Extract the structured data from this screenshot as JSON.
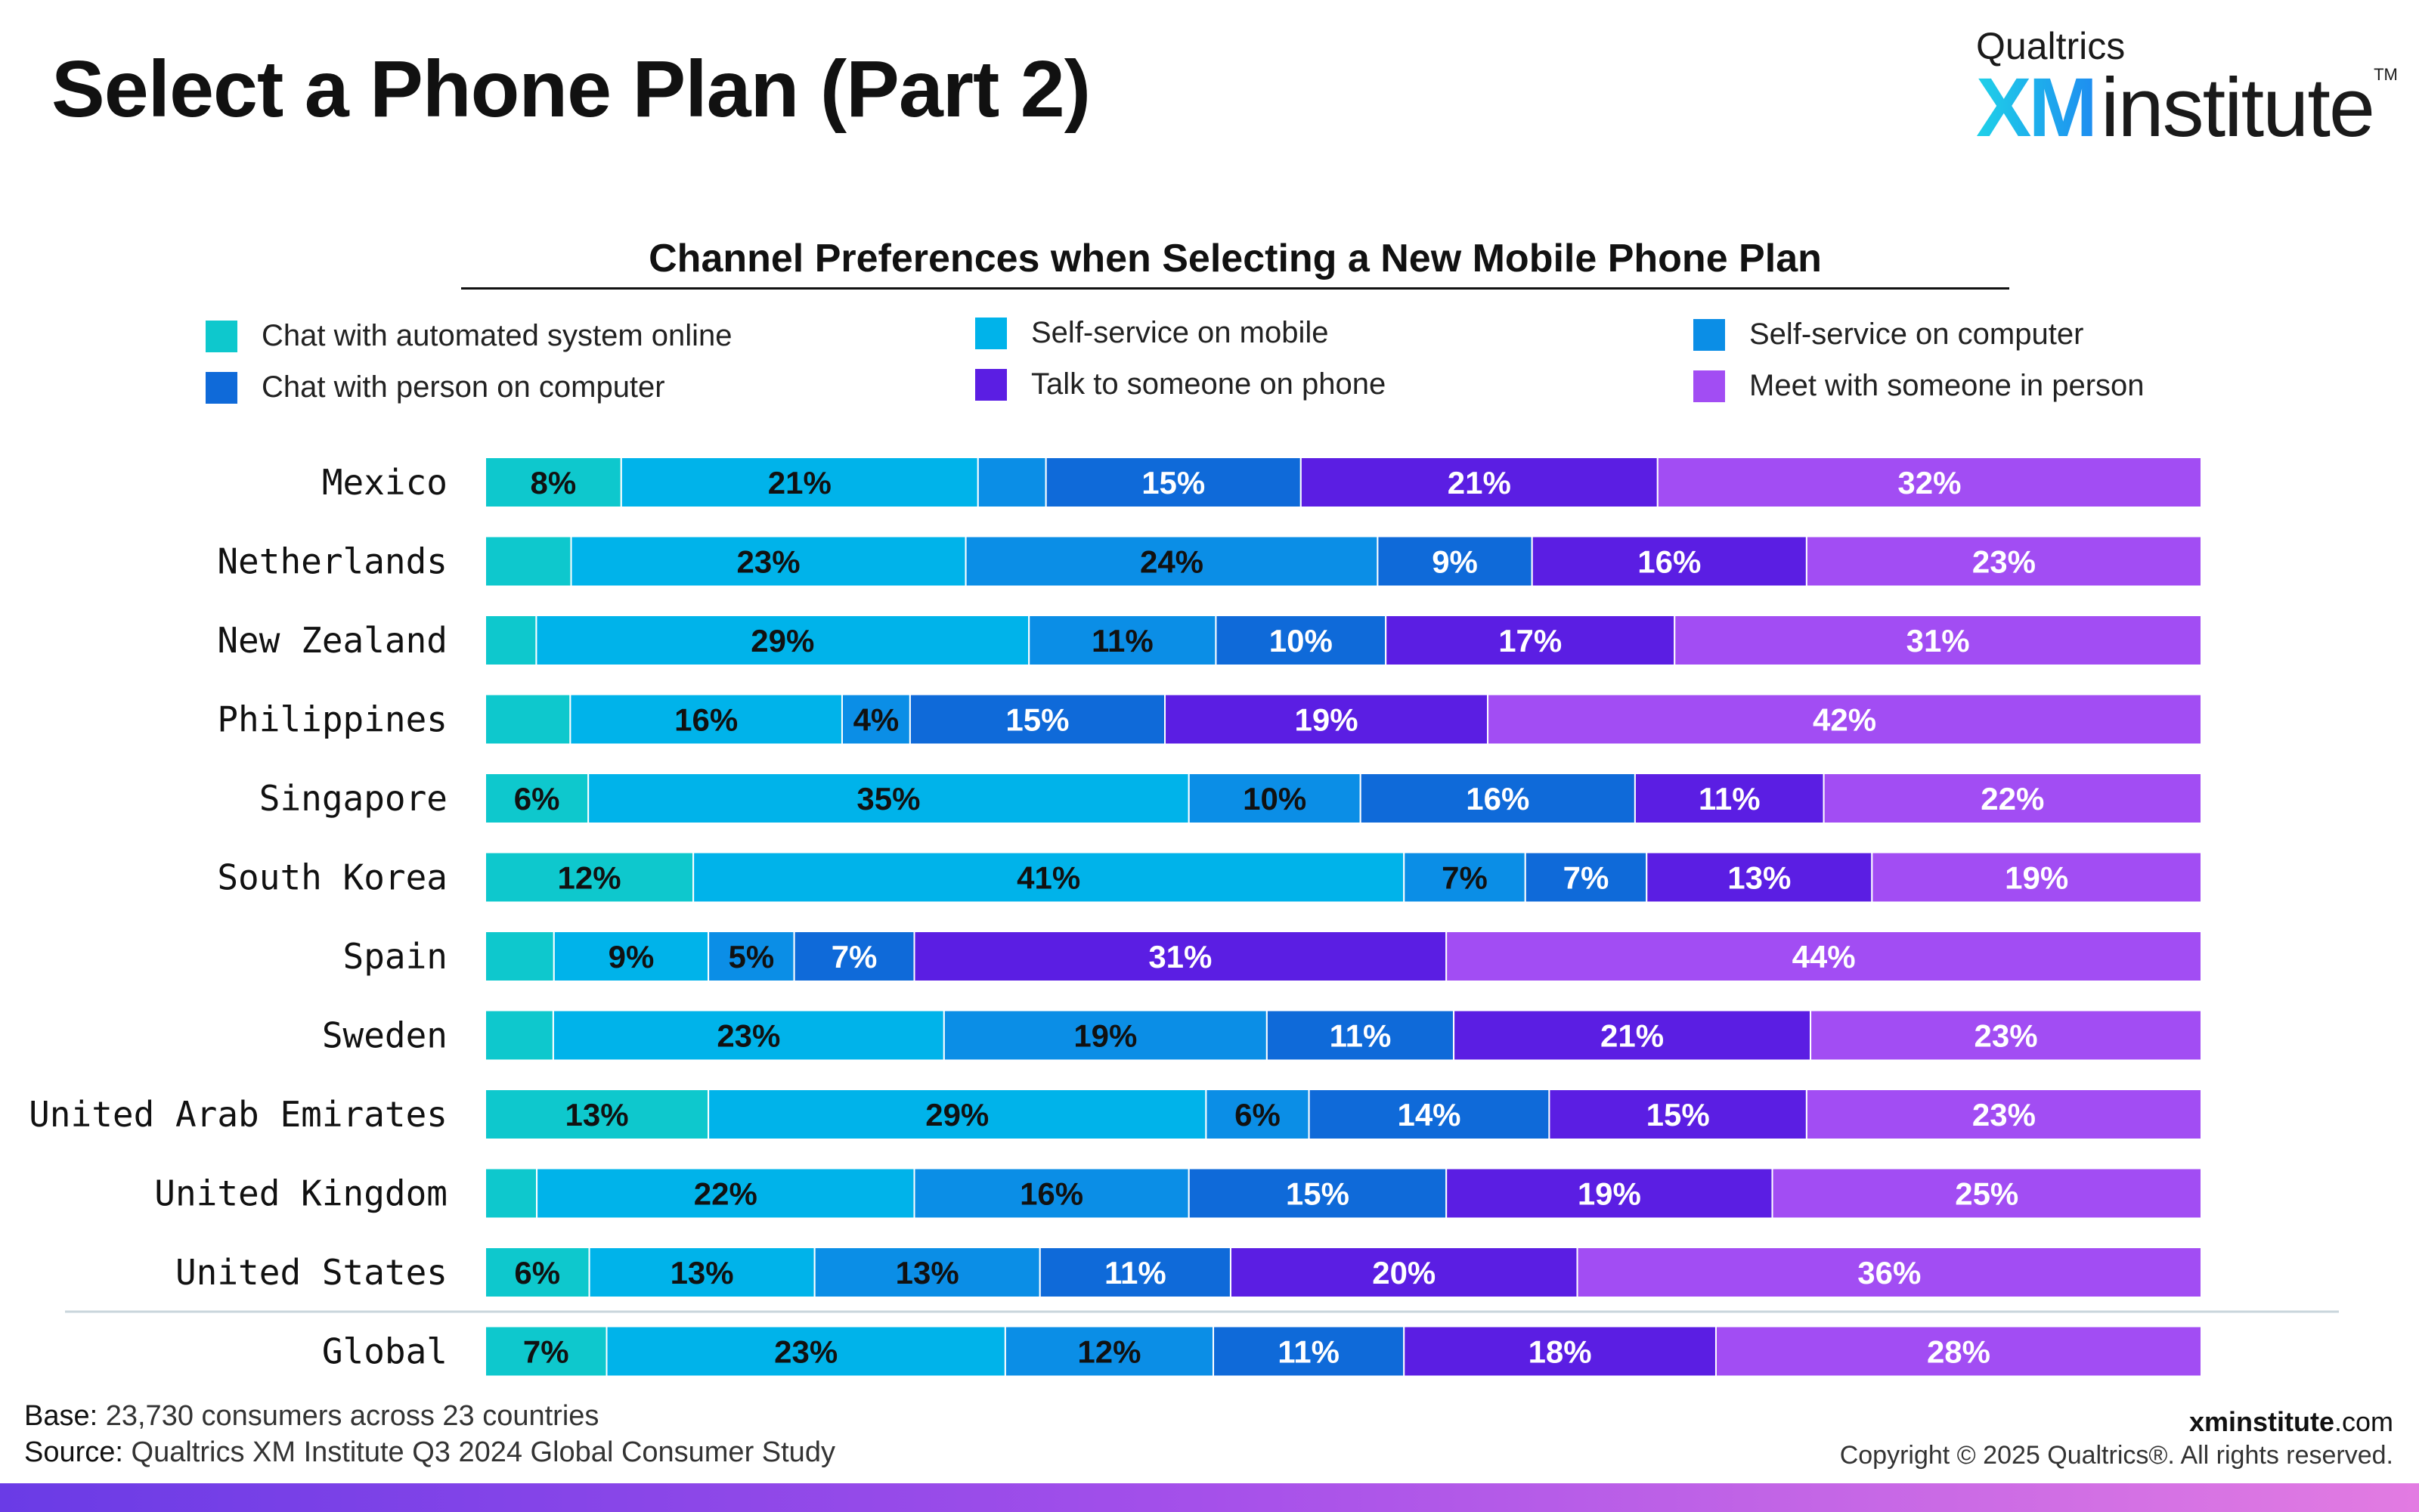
{
  "header": {
    "title": "Select a Phone Plan (Part 2)",
    "logo_small": "Qualtrics",
    "logo_xm": "XM",
    "logo_institute": "institute",
    "logo_tm": "TM"
  },
  "footer": {
    "base_label": "Base:",
    "base_text": " 23,730 consumers across 23 countries",
    "source_label": "Source:",
    "source_text": " Qualtrics XM Institute Q3 2024 Global Consumer Study",
    "site_bold": "xminstitute",
    "site_rest": ".com",
    "copyright": "Copyright © 2025 Qualtrics®. All rights reserved."
  },
  "chart_data": {
    "type": "bar",
    "orientation": "horizontal",
    "stacked": true,
    "normalized": true,
    "title": "Channel Preferences when Selecting a New Mobile Phone Plan",
    "legend_position": "top",
    "categories": [
      "Mexico",
      "Netherlands",
      "New Zealand",
      "Philippines",
      "Singapore",
      "South Korea",
      "Spain",
      "Sweden",
      "United Arab Emirates",
      "United Kingdom",
      "United States",
      "Global"
    ],
    "series": [
      {
        "name": "Chat with automated system online",
        "color": "#0ec8cd",
        "label_color": "#111111",
        "values": [
          8,
          5,
          3,
          5,
          6,
          12,
          4,
          4,
          13,
          3,
          6,
          7
        ]
      },
      {
        "name": "Self-service on mobile",
        "color": "#00b3ea",
        "label_color": "#111111",
        "values": [
          21,
          23,
          29,
          16,
          35,
          41,
          9,
          23,
          29,
          22,
          13,
          23
        ]
      },
      {
        "name": "Self-service on computer",
        "color": "#0b8ee6",
        "label_color": "#111111",
        "values": [
          4,
          24,
          11,
          4,
          10,
          7,
          5,
          19,
          6,
          16,
          13,
          12
        ]
      },
      {
        "name": "Chat with person on computer",
        "color": "#0f6ad9",
        "label_color": "#ffffff",
        "values": [
          15,
          9,
          10,
          15,
          16,
          7,
          7,
          11,
          14,
          15,
          11,
          11
        ]
      },
      {
        "name": "Talk to someone on phone",
        "color": "#5b1ee3",
        "label_color": "#ffffff",
        "values": [
          21,
          16,
          17,
          19,
          11,
          13,
          31,
          21,
          15,
          19,
          20,
          18
        ]
      },
      {
        "name": "Meet with someone in person",
        "color": "#a24df3",
        "label_color": "#ffffff",
        "values": [
          32,
          23,
          31,
          42,
          22,
          19,
          44,
          23,
          23,
          25,
          36,
          28
        ]
      }
    ],
    "hidden_labels": [
      [
        false,
        false,
        true,
        false,
        false,
        false
      ],
      [
        true,
        false,
        false,
        false,
        false,
        false
      ],
      [
        true,
        false,
        false,
        false,
        false,
        false
      ],
      [
        true,
        false,
        false,
        false,
        false,
        false
      ],
      [
        false,
        false,
        false,
        false,
        false,
        false
      ],
      [
        false,
        false,
        false,
        false,
        false,
        false
      ],
      [
        true,
        false,
        false,
        false,
        false,
        false
      ],
      [
        true,
        false,
        false,
        false,
        false,
        false
      ],
      [
        false,
        false,
        false,
        false,
        false,
        false
      ],
      [
        true,
        false,
        false,
        false,
        false,
        false
      ],
      [
        false,
        false,
        false,
        false,
        false,
        false
      ],
      [
        false,
        false,
        false,
        false,
        false,
        false
      ]
    ],
    "value_suffix": "%",
    "grid": false
  }
}
